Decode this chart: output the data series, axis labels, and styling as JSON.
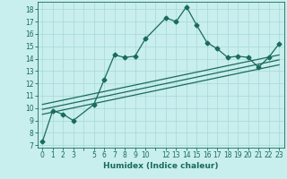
{
  "xlabel": "Humidex (Indice chaleur)",
  "bg_color": "#c8eeee",
  "grid_color": "#a8d8d8",
  "line_color": "#1a6b5a",
  "xlim": [
    -0.5,
    23.5
  ],
  "ylim": [
    6.8,
    18.6
  ],
  "yticks": [
    7,
    8,
    9,
    10,
    11,
    12,
    13,
    14,
    15,
    16,
    17,
    18
  ],
  "xtick_positions": [
    0,
    1,
    2,
    3,
    4,
    5,
    6,
    7,
    8,
    9,
    10,
    11,
    12,
    13,
    14,
    15,
    16,
    17,
    18,
    19,
    20,
    21,
    22,
    23
  ],
  "xtick_labels": [
    "0",
    "1",
    "2",
    "3",
    "",
    "5",
    "6",
    "7",
    "8",
    "9",
    "10",
    "",
    "12",
    "13",
    "14",
    "15",
    "16",
    "17",
    "18",
    "19",
    "20",
    "21",
    "22",
    "23"
  ],
  "main_x": [
    0,
    1,
    2,
    3,
    5,
    6,
    7,
    8,
    9,
    10,
    12,
    13,
    14,
    15,
    16,
    17,
    18,
    19,
    20,
    21,
    22,
    23
  ],
  "main_y": [
    7.3,
    9.8,
    9.5,
    9.0,
    10.3,
    12.3,
    14.3,
    14.1,
    14.2,
    15.6,
    17.3,
    17.0,
    18.2,
    16.7,
    15.3,
    14.8,
    14.1,
    14.2,
    14.1,
    13.3,
    14.1,
    15.2
  ],
  "line1_x": [
    0,
    23
  ],
  "line1_y": [
    9.5,
    13.5
  ],
  "line2_x": [
    0,
    23
  ],
  "line2_y": [
    9.9,
    13.9
  ],
  "line3_x": [
    0,
    23
  ],
  "line3_y": [
    10.3,
    14.3
  ],
  "marker": "D",
  "marker_size": 2.5,
  "line_width": 0.9,
  "tick_fontsize": 5.5,
  "xlabel_fontsize": 6.5
}
